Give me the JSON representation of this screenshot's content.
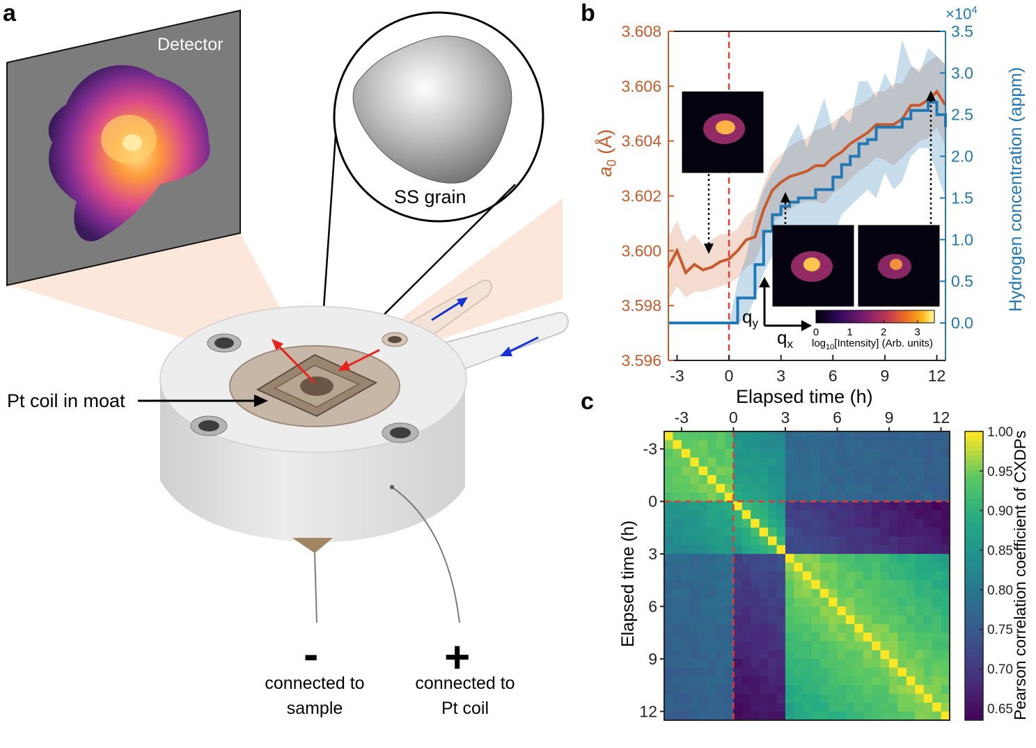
{
  "panels": {
    "a": "a",
    "b": "b",
    "c": "c"
  },
  "panel_a": {
    "detector_label": "Detector",
    "grain_label": "SS grain",
    "coil_label": "Pt coil in moat",
    "minus_sign": "-",
    "plus_sign": "+",
    "minus_caption_1": "connected to",
    "minus_caption_2": "sample",
    "plus_caption_1": "connected to",
    "plus_caption_2": "Pt coil",
    "colors": {
      "cell_body": "#e6e6e6",
      "beam": "#fbe3d4",
      "red_arrow": "#e8231b",
      "blue_arrow": "#1432d6"
    }
  },
  "panel_b": {
    "xlabel": "Elapsed time (h)",
    "ylabel_left_main": "a",
    "ylabel_left_sub": "0",
    "ylabel_left_unit": " (Å)",
    "ylabel_right": "Hydrogen concentration (appm)",
    "right_multiplier_base": "×10",
    "right_multiplier_exp": "4",
    "colorbar_label_main": "log",
    "colorbar_label_sub": "10",
    "colorbar_label_rest": "[Intensity] (Arb. units)",
    "qy_main": "q",
    "qy_sub": "y",
    "qx_main": "q",
    "qx_sub": "x",
    "colors": {
      "lattice": "#C85A2B",
      "hydrogen": "#1F77B4",
      "dashed": "#e03c31"
    }
  },
  "panel_c": {
    "ylabel": "Elapsed time (h)",
    "colorbar_label": "Pearson correlation coefficient of CXDPs"
  },
  "chart_data": [
    {
      "type": "line",
      "title": "",
      "xlabel": "Elapsed time (h)",
      "ylabel": "a0 (Å)",
      "ylabel_right": "Hydrogen concentration (appm) ×10^4",
      "xlim": [
        -3.5,
        12.5
      ],
      "ylim": [
        3.596,
        3.608
      ],
      "ylim_right": [
        -0.45,
        3.5
      ],
      "x_ticks": [
        -3,
        0,
        3,
        6,
        9,
        12
      ],
      "y_ticks": [
        "3.596",
        "3.598",
        "3.600",
        "3.602",
        "3.604",
        "3.606",
        "3.608"
      ],
      "y_ticks_right": [
        "0.0",
        "0.5",
        "1.0",
        "1.5",
        "2.0",
        "2.5",
        "3.0",
        "3.5"
      ],
      "colorbar_ticks": [
        "0",
        "1",
        "2",
        "3"
      ],
      "x": [
        -3.5,
        -3,
        -2.5,
        -2,
        -1.5,
        -1,
        -0.5,
        0,
        0.5,
        1,
        1.5,
        2,
        2.5,
        3,
        3.5,
        4,
        4.5,
        5,
        5.5,
        6,
        6.5,
        7,
        7.5,
        8,
        8.5,
        9,
        9.5,
        10,
        10.5,
        11,
        11.5,
        12,
        12.5
      ],
      "series": [
        {
          "name": "Lattice parameter a0 (Å)",
          "axis": "left",
          "values": [
            3.5994,
            3.6,
            3.5992,
            3.5995,
            3.5993,
            3.5994,
            3.5996,
            3.5997,
            3.6,
            3.6004,
            3.6005,
            3.6015,
            3.6022,
            3.6025,
            3.6027,
            3.6028,
            3.6029,
            3.6031,
            3.6031,
            3.6034,
            3.6036,
            3.6039,
            3.6041,
            3.6043,
            3.6046,
            3.6046,
            3.6046,
            3.6048,
            3.6053,
            3.6053,
            3.6055,
            3.6058,
            3.6053
          ],
          "band_low": [
            3.5982,
            3.5987,
            3.5983,
            3.5985,
            3.5985,
            3.5986,
            3.5987,
            3.5988,
            3.599,
            3.5994,
            3.5996,
            3.6004,
            3.601,
            3.6013,
            3.6015,
            3.6017,
            3.6018,
            3.6018,
            3.6017,
            3.6021,
            3.6023,
            3.6026,
            3.6029,
            3.6031,
            3.6034,
            3.6033,
            3.6031,
            3.6034,
            3.6037,
            3.604,
            3.6041,
            3.6045,
            3.6038
          ],
          "band_high": [
            3.6005,
            3.6011,
            3.6003,
            3.6006,
            3.6002,
            3.6004,
            3.6006,
            3.6006,
            3.6008,
            3.6013,
            3.6015,
            3.6024,
            3.6032,
            3.6035,
            3.6038,
            3.604,
            3.6041,
            3.6044,
            3.6045,
            3.6047,
            3.6049,
            3.6052,
            3.6053,
            3.6055,
            3.6058,
            3.6058,
            3.6061,
            3.6061,
            3.6067,
            3.6066,
            3.6069,
            3.6071,
            3.6068
          ]
        },
        {
          "name": "Hydrogen concentration (×10^4 appm)",
          "axis": "right",
          "values": [
            0.0,
            0.0,
            0.0,
            0.0,
            0.0,
            0.0,
            0.0,
            0.0,
            0.3,
            0.3,
            0.7,
            1.1,
            1.3,
            1.4,
            1.45,
            1.5,
            1.5,
            1.6,
            1.6,
            1.75,
            1.9,
            2.0,
            2.15,
            2.2,
            2.35,
            2.35,
            2.35,
            2.45,
            2.55,
            2.55,
            2.65,
            2.5,
            2.35
          ],
          "band_low": [
            0.0,
            0.0,
            0.0,
            0.0,
            0.0,
            0.0,
            0.0,
            0.0,
            0.0,
            0.05,
            0.3,
            0.6,
            0.8,
            0.7,
            0.6,
            0.5,
            0.8,
            0.9,
            0.6,
            1.0,
            1.3,
            1.4,
            1.5,
            1.6,
            1.5,
            1.8,
            1.6,
            1.7,
            2.0,
            2.1,
            2.1,
            1.8,
            1.5
          ],
          "band_high": [
            0.0,
            0.0,
            0.0,
            0.0,
            0.0,
            0.0,
            0.0,
            0.0,
            0.5,
            0.8,
            1.3,
            1.6,
            1.8,
            1.95,
            2.2,
            2.4,
            2.1,
            2.4,
            2.7,
            2.3,
            2.5,
            2.4,
            2.9,
            2.9,
            2.7,
            3.0,
            2.8,
            3.4,
            3.1,
            3.0,
            3.3,
            3.2,
            3.1
          ]
        }
      ],
      "annotations": [
        "vertical dashed line at t = 0 h",
        "inset diffraction patterns near t ≈ -1 h, 3.3 h, 11.7 h"
      ]
    },
    {
      "type": "heatmap",
      "title": "",
      "xlabel": "",
      "ylabel": "Elapsed time (h)",
      "x_ticks": [
        "-3",
        "0",
        "3",
        "6",
        "9",
        "12"
      ],
      "y_ticks": [
        "-3",
        "0",
        "3",
        "6",
        "9",
        "12"
      ],
      "colorbar_range": [
        0.635,
        1.0
      ],
      "colorbar_ticks": [
        "1.00",
        "0.95",
        "0.90",
        "0.85",
        "0.80",
        "0.75",
        "0.70",
        "0.65"
      ],
      "colorbar_label": "Pearson correlation coefficient of CXDPs",
      "grid_size": 33,
      "time_start": -3.75,
      "time_step": 0.5,
      "block_structure": "high correlation within the pre-charging block (-4 h to 0 h, ~0.93-0.96) and within the post-3 h block (~0.88-0.97); low correlation (~0.65-0.76) between blocks; diagonal = 1.00",
      "annotations": [
        "dashed lines at t = 0 h"
      ]
    }
  ]
}
